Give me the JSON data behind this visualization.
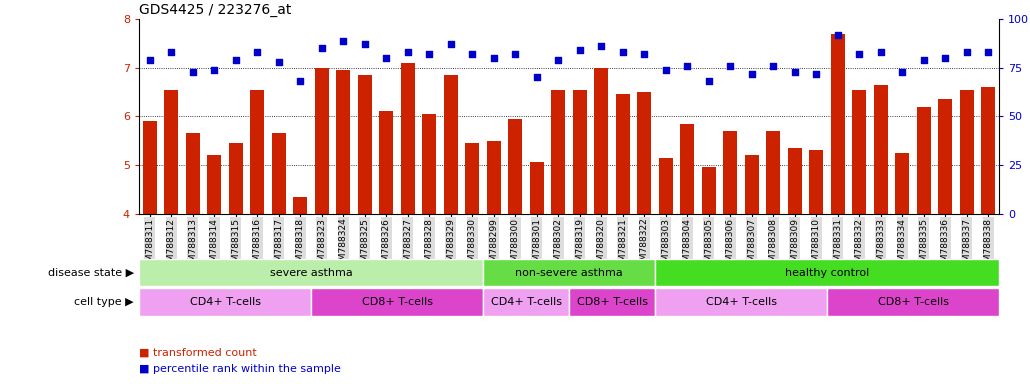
{
  "title": "GDS4425 / 223276_at",
  "samples": [
    "GSM788311",
    "GSM788312",
    "GSM788313",
    "GSM788314",
    "GSM788315",
    "GSM788316",
    "GSM788317",
    "GSM788318",
    "GSM788323",
    "GSM788324",
    "GSM788325",
    "GSM788326",
    "GSM788327",
    "GSM788328",
    "GSM788329",
    "GSM788330",
    "GSM788299",
    "GSM788300",
    "GSM788301",
    "GSM788302",
    "GSM788319",
    "GSM788320",
    "GSM788321",
    "GSM788322",
    "GSM788303",
    "GSM788304",
    "GSM788305",
    "GSM788306",
    "GSM788307",
    "GSM788308",
    "GSM788309",
    "GSM788310",
    "GSM788331",
    "GSM788332",
    "GSM788333",
    "GSM788334",
    "GSM788335",
    "GSM788336",
    "GSM788337",
    "GSM788338"
  ],
  "bar_values": [
    5.9,
    6.55,
    5.65,
    5.2,
    5.45,
    6.55,
    5.65,
    4.35,
    7.0,
    6.95,
    6.85,
    6.1,
    7.1,
    6.05,
    6.85,
    5.45,
    5.5,
    5.95,
    5.05,
    6.55,
    6.55,
    7.0,
    6.45,
    6.5,
    5.15,
    5.85,
    4.95,
    5.7,
    5.2,
    5.7,
    5.35,
    5.3,
    7.7,
    6.55,
    6.65,
    5.25,
    6.2,
    6.35,
    6.55,
    6.6
  ],
  "percentile_values": [
    79,
    83,
    73,
    74,
    79,
    83,
    78,
    68,
    85,
    89,
    87,
    80,
    83,
    82,
    87,
    82,
    80,
    82,
    70,
    79,
    84,
    86,
    83,
    82,
    74,
    76,
    68,
    76,
    72,
    76,
    73,
    72,
    92,
    82,
    83,
    73,
    79,
    80,
    83,
    83
  ],
  "ylim_left": [
    4,
    8
  ],
  "ylim_right": [
    0,
    100
  ],
  "yticks_left": [
    4,
    5,
    6,
    7,
    8
  ],
  "yticks_right": [
    0,
    25,
    50,
    75,
    100
  ],
  "bar_color": "#cc2200",
  "dot_color": "#0000cc",
  "background_color": "#ffffff",
  "disease_state_segments": [
    {
      "label": "severe asthma",
      "start": 0,
      "end": 16,
      "color": "#bbeeaa"
    },
    {
      "label": "non-severe asthma",
      "start": 16,
      "end": 24,
      "color": "#66dd44"
    },
    {
      "label": "healthy control",
      "start": 24,
      "end": 40,
      "color": "#44dd22"
    }
  ],
  "cell_type_segments": [
    {
      "label": "CD4+ T-cells",
      "start": 0,
      "end": 8,
      "color": "#f0a0f0"
    },
    {
      "label": "CD8+ T-cells",
      "start": 8,
      "end": 16,
      "color": "#dd44cc"
    },
    {
      "label": "CD4+ T-cells",
      "start": 16,
      "end": 20,
      "color": "#f0a0f0"
    },
    {
      "label": "CD8+ T-cells",
      "start": 20,
      "end": 24,
      "color": "#dd44cc"
    },
    {
      "label": "CD4+ T-cells",
      "start": 24,
      "end": 32,
      "color": "#f0a0f0"
    },
    {
      "label": "CD8+ T-cells",
      "start": 32,
      "end": 40,
      "color": "#dd44cc"
    }
  ],
  "disease_state_label": "disease state",
  "cell_type_label": "cell type",
  "legend_bar_label": "transformed count",
  "legend_dot_label": "percentile rank within the sample",
  "title_fontsize": 10,
  "tick_fontsize": 6.5,
  "band_fontsize": 8,
  "label_fontsize": 8
}
